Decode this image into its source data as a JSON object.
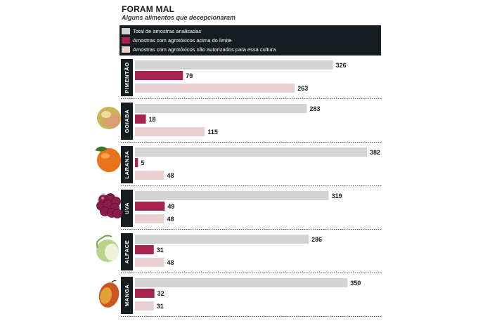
{
  "chart_data": {
    "type": "bar",
    "orientation": "horizontal",
    "title": "FORAM MAL",
    "subtitle": "Alguns alimentos que decepcionaram",
    "categories": [
      "PIMENTÃO",
      "GOIABA",
      "LARANJA",
      "UVA",
      "ALFACE",
      "MANGA"
    ],
    "series": [
      {
        "name": "Total de amostras analisadas",
        "color": "#d3d3d3",
        "values": [
          326,
          283,
          382,
          319,
          286,
          350
        ]
      },
      {
        "name": "Amostras com agrotóxicos acima do limite",
        "color": "#a8244f",
        "values": [
          79,
          18,
          5,
          49,
          31,
          32
        ]
      },
      {
        "name": "Amostras com agrotóxicos não autorizados para essa cultura",
        "color": "#ebd0d2",
        "values": [
          263,
          115,
          48,
          48,
          48,
          31
        ]
      }
    ],
    "xlim": [
      0,
      382
    ],
    "legend_position": "top",
    "grid": false
  },
  "icons": [
    "pepper-icon",
    "guava-icon",
    "orange-icon",
    "grape-icon",
    "lettuce-icon",
    "mango-icon"
  ]
}
